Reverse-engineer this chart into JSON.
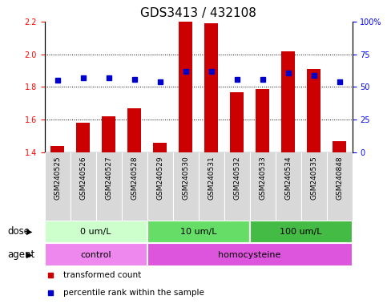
{
  "title": "GDS3413 / 432108",
  "samples": [
    "GSM240525",
    "GSM240526",
    "GSM240527",
    "GSM240528",
    "GSM240529",
    "GSM240530",
    "GSM240531",
    "GSM240532",
    "GSM240533",
    "GSM240534",
    "GSM240535",
    "GSM240848"
  ],
  "transformed_counts": [
    1.44,
    1.58,
    1.62,
    1.67,
    1.46,
    2.2,
    2.19,
    1.77,
    1.79,
    2.02,
    1.91,
    1.47
  ],
  "percentile_ranks_pct": [
    55,
    57,
    57,
    56,
    54,
    62,
    62,
    56,
    56,
    61,
    59,
    54
  ],
  "ylim_left": [
    1.4,
    2.2
  ],
  "ylim_right": [
    0,
    100
  ],
  "yticks_left": [
    1.4,
    1.6,
    1.8,
    2.0,
    2.2
  ],
  "yticks_right": [
    0,
    25,
    50,
    75,
    100
  ],
  "ytick_labels_right": [
    "0",
    "25",
    "50",
    "75",
    "100%"
  ],
  "bar_color": "#cc0000",
  "dot_color": "#0000cc",
  "dose_groups": [
    {
      "label": "0 um/L",
      "start": 0,
      "end": 4,
      "color": "#ccffcc"
    },
    {
      "label": "10 um/L",
      "start": 4,
      "end": 8,
      "color": "#66dd66"
    },
    {
      "label": "100 um/L",
      "start": 8,
      "end": 12,
      "color": "#44bb44"
    }
  ],
  "agent_groups": [
    {
      "label": "control",
      "start": 0,
      "end": 4,
      "color": "#ee88ee"
    },
    {
      "label": "homocysteine",
      "start": 4,
      "end": 12,
      "color": "#dd55dd"
    }
  ],
  "dose_label": "dose",
  "agent_label": "agent",
  "legend_items": [
    {
      "color": "#cc0000",
      "label": "transformed count"
    },
    {
      "color": "#0000cc",
      "label": "percentile rank within the sample"
    }
  ],
  "title_fontsize": 11,
  "tick_fontsize": 7,
  "sample_fontsize": 6.5,
  "label_fontsize": 8.5,
  "group_fontsize": 8
}
